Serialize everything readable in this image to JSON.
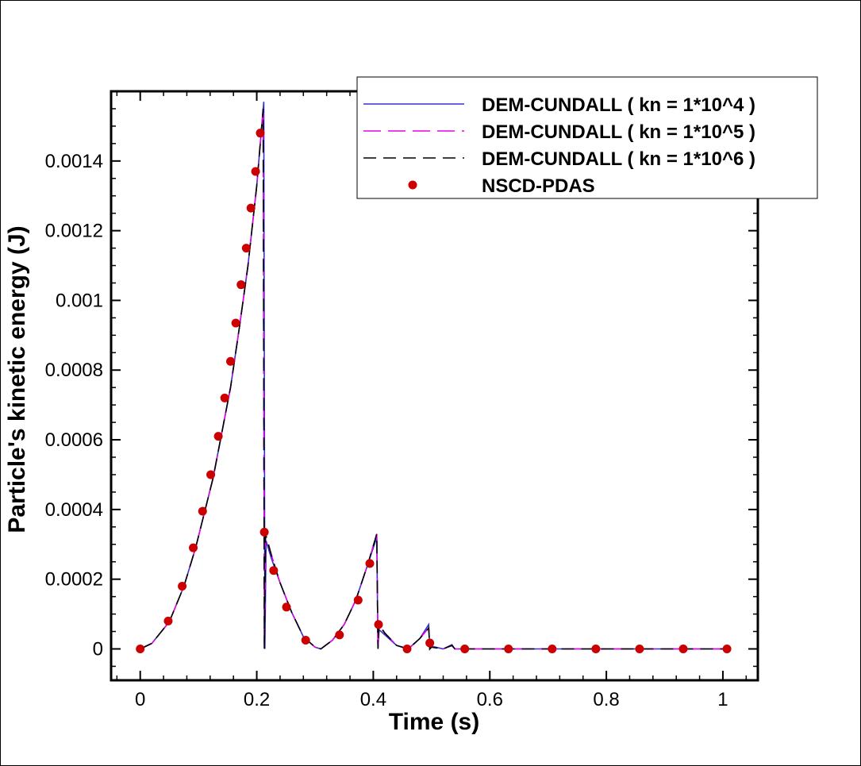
{
  "chart_data": {
    "type": "line",
    "title": "",
    "xlabel": "Time (s)",
    "ylabel": "Particle's kinetic energy (J)",
    "xlim": [
      -0.05,
      1.06
    ],
    "ylim": [
      -9e-05,
      0.0016
    ],
    "xticks": [
      0,
      0.2,
      0.4,
      0.6,
      0.8,
      1
    ],
    "xtick_labels": [
      "0",
      "0.2",
      "0.4",
      "0.6",
      "0.8",
      "1"
    ],
    "yticks": [
      0,
      0.0002,
      0.0004,
      0.0006,
      0.0008,
      0.001,
      0.0012,
      0.0014
    ],
    "ytick_labels": [
      "0",
      "0.0002",
      "0.0004",
      "0.0006",
      "0.0008",
      "0.001",
      "0.0012",
      "0.0014"
    ],
    "grid": false,
    "legend_position": "top-right",
    "series": [
      {
        "name": "DEM-CUNDALL ( kn = 1*10^4 )",
        "style": "solid",
        "color": "#3333cc",
        "x": [
          0,
          0.02,
          0.05,
          0.075,
          0.095,
          0.11,
          0.125,
          0.14,
          0.155,
          0.17,
          0.185,
          0.2,
          0.212,
          0.214,
          0.216,
          0.225,
          0.24,
          0.26,
          0.28,
          0.3,
          0.31,
          0.33,
          0.35,
          0.37,
          0.39,
          0.406,
          0.408,
          0.41,
          0.42,
          0.44,
          0.46,
          0.48,
          0.495,
          0.497,
          0.5,
          0.52,
          0.535,
          0.54,
          0.56,
          0.6,
          0.7,
          0.8,
          0.9,
          1.01
        ],
        "y": [
          0,
          1.6e-05,
          7.8e-05,
          0.00018,
          0.00029,
          0.00039,
          0.00049,
          0.00062,
          0.00075,
          0.00092,
          0.0011,
          0.00133,
          0.00157,
          0.0,
          0.00031,
          0.00026,
          0.00019,
          0.000105,
          3.5e-05,
          5e-06,
          0.0,
          2.5e-05,
          7e-05,
          0.00014,
          0.00024,
          0.00032,
          0.0,
          5.5e-05,
          4e-05,
          1e-05,
          0.0,
          3e-05,
          7e-05,
          0.0,
          8e-06,
          0.0,
          1.2e-05,
          0.0,
          0.0,
          0.0,
          0.0,
          0.0,
          0.0,
          0.0
        ]
      },
      {
        "name": "DEM-CUNDALL ( kn = 1*10^5 )",
        "style": "dashed",
        "color": "#e600e6",
        "x": [
          0,
          0.02,
          0.05,
          0.075,
          0.095,
          0.11,
          0.125,
          0.14,
          0.155,
          0.17,
          0.185,
          0.2,
          0.211,
          0.213,
          0.215,
          0.225,
          0.24,
          0.26,
          0.28,
          0.3,
          0.31,
          0.33,
          0.35,
          0.37,
          0.39,
          0.406,
          0.408,
          0.41,
          0.42,
          0.44,
          0.46,
          0.48,
          0.495,
          0.497,
          0.5,
          0.52,
          0.535,
          0.54,
          0.56,
          0.6,
          0.7,
          0.8,
          0.9,
          1.01
        ],
        "y": [
          0,
          1.6e-05,
          7.8e-05,
          0.00018,
          0.00029,
          0.00039,
          0.00049,
          0.00062,
          0.00075,
          0.00092,
          0.0011,
          0.00133,
          0.00155,
          0.0,
          0.00033,
          0.00027,
          0.00019,
          0.000105,
          3.5e-05,
          5e-06,
          0.0,
          2.5e-05,
          7e-05,
          0.00014,
          0.00024,
          0.00033,
          0.0,
          6.5e-05,
          4.5e-05,
          1e-05,
          0.0,
          3e-05,
          6e-05,
          0.0,
          6e-06,
          0.0,
          1e-05,
          0.0,
          0.0,
          0.0,
          0.0,
          0.0,
          0.0,
          0.0
        ]
      },
      {
        "name": "DEM-CUNDALL ( kn = 1*10^6 )",
        "style": "dashed",
        "color": "#000000",
        "x": [
          0,
          0.02,
          0.05,
          0.075,
          0.095,
          0.11,
          0.125,
          0.14,
          0.155,
          0.17,
          0.185,
          0.2,
          0.211,
          0.213,
          0.215,
          0.225,
          0.24,
          0.26,
          0.28,
          0.3,
          0.31,
          0.33,
          0.35,
          0.37,
          0.39,
          0.406,
          0.408,
          0.41,
          0.42,
          0.44,
          0.46,
          0.48,
          0.495,
          0.497,
          0.5,
          0.52,
          0.535,
          0.54,
          0.56,
          0.6,
          0.7,
          0.8,
          0.9,
          1.01
        ],
        "y": [
          0,
          1.6e-05,
          7.8e-05,
          0.00018,
          0.00029,
          0.00039,
          0.00049,
          0.00062,
          0.00075,
          0.00092,
          0.0011,
          0.00133,
          0.00155,
          0.0,
          0.00033,
          0.00027,
          0.00019,
          0.000105,
          3.5e-05,
          5e-06,
          0.0,
          2.5e-05,
          7e-05,
          0.00014,
          0.00024,
          0.00033,
          0.0,
          7e-05,
          4.5e-05,
          1e-05,
          0.0,
          3e-05,
          6e-05,
          0.0,
          5e-06,
          0.0,
          1e-05,
          0.0,
          0.0,
          0.0,
          0.0,
          0.0,
          0.0,
          0.0
        ]
      },
      {
        "name": "NSCD-PDAS",
        "style": "markers",
        "color": "#cc0000",
        "x": [
          0,
          0.048,
          0.072,
          0.091,
          0.107,
          0.121,
          0.134,
          0.145,
          0.155,
          0.164,
          0.173,
          0.182,
          0.19,
          0.198,
          0.206,
          0.213,
          0.229,
          0.251,
          0.284,
          0.342,
          0.374,
          0.394,
          0.409,
          0.458,
          0.497,
          0.557,
          0.632,
          0.707,
          0.782,
          0.857,
          0.932,
          1.007
        ],
        "y": [
          0,
          8e-05,
          0.00018,
          0.00029,
          0.000395,
          0.0005,
          0.00061,
          0.00072,
          0.000825,
          0.000935,
          0.001045,
          0.00115,
          0.001265,
          0.00137,
          0.00148,
          0.000335,
          0.000225,
          0.00012,
          2.5e-05,
          4e-05,
          0.00014,
          0.000245,
          7e-05,
          0.0,
          1.7e-05,
          0.0,
          0.0,
          0.0,
          0.0,
          0.0,
          0.0,
          0.0
        ]
      }
    ]
  }
}
